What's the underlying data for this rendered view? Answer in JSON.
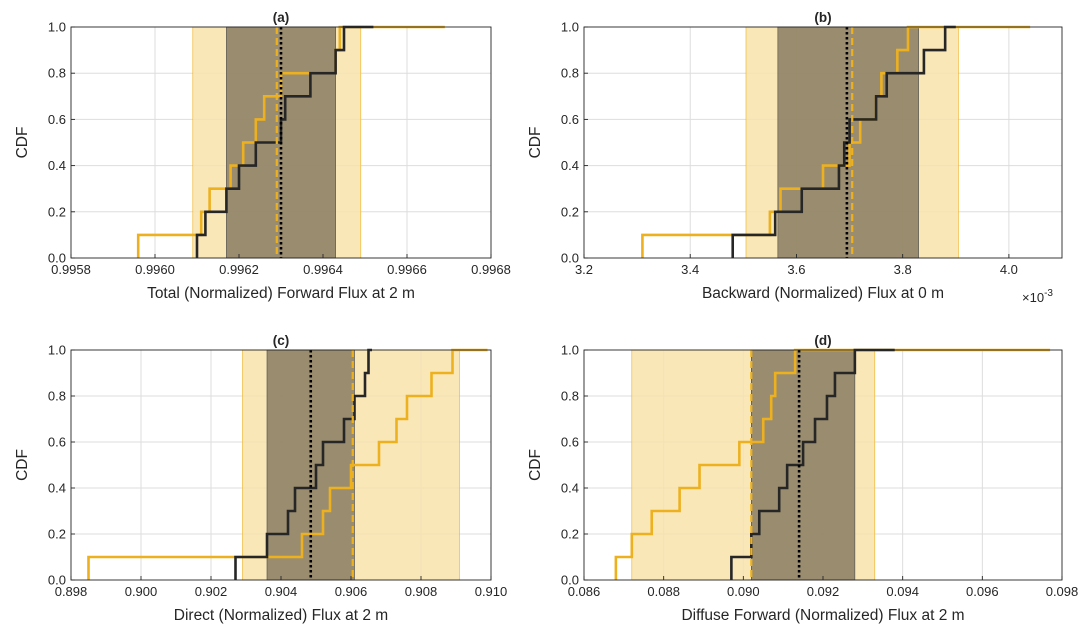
{
  "figure": {
    "ylabel": "CDF",
    "colors": {
      "orange": "#EDB120",
      "orange_band": "#F8E3AC",
      "dark": "#262626",
      "dark_band": "#8C7F63",
      "grid": "#DDDDDD",
      "axis": "#262626"
    }
  },
  "chart_data": [
    {
      "type": "line",
      "title": "(a)",
      "xlabel": "Total (Normalized) Forward Flux at 2 m",
      "ylabel": "CDF",
      "xlim": [
        0.9958,
        0.9968
      ],
      "ylim": [
        0,
        1
      ],
      "xticks": [
        0.9958,
        0.996,
        0.9962,
        0.9964,
        0.9966,
        0.9968
      ],
      "xtick_labels": [
        "0.9958",
        "0.9960",
        "0.9962",
        "0.9964",
        "0.9966",
        "0.9968"
      ],
      "yticks": [
        0,
        0.2,
        0.4,
        0.6,
        0.8,
        1
      ],
      "ytick_labels": [
        "0.0",
        "0.2",
        "0.4",
        "0.6",
        "0.8",
        "1.0"
      ],
      "grid": true,
      "orange_band": [
        0.99609,
        0.99649
      ],
      "dark_band": [
        0.99617,
        0.99643
      ],
      "orange_mean": 0.99629,
      "dark_mean": 0.9963,
      "series": [
        {
          "style": "orange-ecdf",
          "x": [
            0.99596,
            0.99611,
            0.99613,
            0.99618,
            0.99621,
            0.99624,
            0.99626,
            0.9963,
            0.99643,
            0.99644,
            0.99669
          ]
        },
        {
          "style": "dark-ecdf",
          "x": [
            0.9961,
            0.99612,
            0.99617,
            0.9962,
            0.99624,
            0.9963,
            0.99631,
            0.99637,
            0.99643,
            0.99645,
            0.99652
          ]
        }
      ]
    },
    {
      "type": "line",
      "title": "(b)",
      "xlabel": "Backward (Normalized) Flux at 0 m",
      "exponent_label": "×10",
      "exponent_power": "-3",
      "ylabel": "CDF",
      "xlim": [
        3.2,
        4.1
      ],
      "ylim": [
        0,
        1
      ],
      "xticks": [
        3.2,
        3.4,
        3.6,
        3.8,
        4.0
      ],
      "xtick_labels": [
        "3.2",
        "3.4",
        "3.6",
        "3.8",
        "4.0"
      ],
      "yticks": [
        0,
        0.2,
        0.4,
        0.6,
        0.8,
        1
      ],
      "ytick_labels": [
        "0.0",
        "0.2",
        "0.4",
        "0.6",
        "0.8",
        "1.0"
      ],
      "grid": true,
      "orange_band": [
        3.505,
        3.905
      ],
      "dark_band": [
        3.565,
        3.83
      ],
      "orange_mean": 3.705,
      "dark_mean": 3.695,
      "series": [
        {
          "style": "orange-ecdf",
          "x": [
            3.31,
            3.55,
            3.57,
            3.65,
            3.7,
            3.72,
            3.75,
            3.76,
            3.79,
            3.81,
            4.04
          ]
        },
        {
          "style": "dark-ecdf",
          "x": [
            3.48,
            3.56,
            3.61,
            3.68,
            3.69,
            3.7,
            3.75,
            3.77,
            3.84,
            3.88,
            3.9
          ]
        }
      ]
    },
    {
      "type": "line",
      "title": "(c)",
      "xlabel": "Direct (Normalized) Flux at 2 m",
      "ylabel": "CDF",
      "xlim": [
        0.898,
        0.91
      ],
      "ylim": [
        0,
        1
      ],
      "xticks": [
        0.898,
        0.9,
        0.902,
        0.904,
        0.906,
        0.908,
        0.91
      ],
      "xtick_labels": [
        "0.898",
        "0.900",
        "0.902",
        "0.904",
        "0.906",
        "0.908",
        "0.910"
      ],
      "yticks": [
        0,
        0.2,
        0.4,
        0.6,
        0.8,
        1
      ],
      "ytick_labels": [
        "0.0",
        "0.2",
        "0.4",
        "0.6",
        "0.8",
        "1.0"
      ],
      "grid": true,
      "orange_band": [
        0.9029,
        0.9091
      ],
      "dark_band": [
        0.9036,
        0.9061
      ],
      "orange_mean": 0.90605,
      "dark_mean": 0.90485,
      "series": [
        {
          "style": "orange-ecdf",
          "x": [
            0.8985,
            0.9046,
            0.9052,
            0.9054,
            0.906,
            0.9068,
            0.9073,
            0.9076,
            0.9083,
            0.9089,
            0.9099
          ]
        },
        {
          "style": "dark-ecdf",
          "x": [
            0.9027,
            0.9036,
            0.9042,
            0.9044,
            0.905,
            0.9052,
            0.9058,
            0.9061,
            0.9064,
            0.9065,
            0.9066
          ]
        }
      ]
    },
    {
      "type": "line",
      "title": "(d)",
      "xlabel": "Diffuse Forward (Normalized) Flux at 2 m",
      "ylabel": "CDF",
      "xlim": [
        0.086,
        0.098
      ],
      "ylim": [
        0,
        1
      ],
      "xticks": [
        0.086,
        0.088,
        0.09,
        0.092,
        0.094,
        0.096,
        0.098
      ],
      "xtick_labels": [
        "0.086",
        "0.088",
        "0.090",
        "0.092",
        "0.094",
        "0.096",
        "0.098"
      ],
      "yticks": [
        0,
        0.2,
        0.4,
        0.6,
        0.8,
        1
      ],
      "ytick_labels": [
        "0.0",
        "0.2",
        "0.4",
        "0.6",
        "0.8",
        "1.0"
      ],
      "grid": true,
      "orange_band": [
        0.0872,
        0.0933
      ],
      "dark_band": [
        0.0902,
        0.0928
      ],
      "orange_mean": 0.0902,
      "dark_mean": 0.0914,
      "series": [
        {
          "style": "orange-ecdf",
          "x": [
            0.0868,
            0.0872,
            0.0877,
            0.0884,
            0.0889,
            0.0899,
            0.0905,
            0.0907,
            0.0908,
            0.0913,
            0.0977
          ]
        },
        {
          "style": "dark-ecdf",
          "x": [
            0.0897,
            0.0902,
            0.0904,
            0.0909,
            0.0911,
            0.0915,
            0.0918,
            0.0921,
            0.0923,
            0.0928,
            0.0938
          ]
        }
      ]
    }
  ]
}
